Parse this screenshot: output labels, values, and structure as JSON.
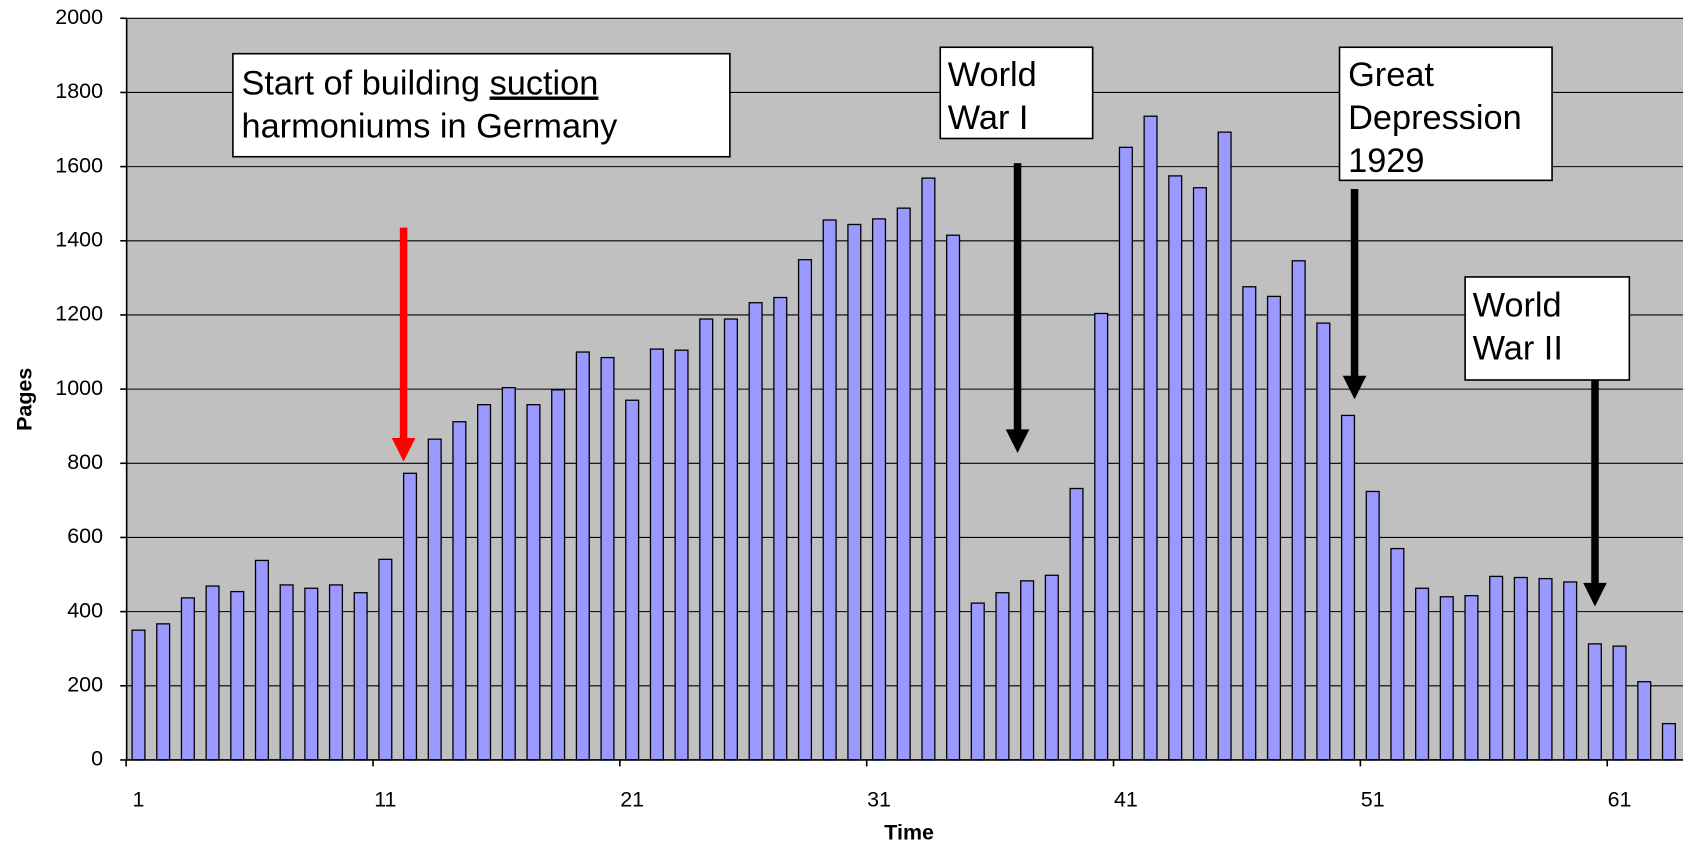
{
  "chart_data": {
    "type": "bar",
    "x_label": "Time",
    "y_label": "Pages",
    "x": [
      1,
      2,
      3,
      4,
      5,
      6,
      7,
      8,
      9,
      10,
      11,
      12,
      13,
      14,
      15,
      16,
      17,
      18,
      19,
      20,
      21,
      22,
      23,
      24,
      25,
      26,
      27,
      28,
      29,
      30,
      31,
      32,
      33,
      34,
      35,
      36,
      37,
      38,
      39,
      40,
      41,
      42,
      43,
      44,
      45,
      46,
      47,
      48,
      49,
      50,
      51,
      52,
      53,
      54,
      55,
      56,
      57,
      58,
      59,
      60,
      61,
      62,
      63
    ],
    "values": [
      350,
      367,
      437,
      469,
      454,
      538,
      472,
      463,
      472,
      451,
      541,
      773,
      865,
      912,
      958,
      1004,
      958,
      998,
      1100,
      1085,
      970,
      1108,
      1105,
      1189,
      1189,
      1233,
      1247,
      1349,
      1456,
      1444,
      1459,
      1488,
      1569,
      1415,
      423,
      451,
      483,
      498,
      732,
      1204,
      1652,
      1736,
      1575,
      1543,
      1693,
      1276,
      1250,
      1346,
      1178,
      929,
      724,
      570,
      463,
      440,
      443,
      495,
      492,
      489,
      480,
      313,
      307,
      211,
      98
    ],
    "color": "#9999ff",
    "background": "#c0c0c0",
    "grid": true,
    "xlim": [
      0.52,
      63.57
    ],
    "xticks": [
      1,
      11,
      21,
      31,
      41,
      51,
      61
    ],
    "ylim": [
      0,
      2000
    ],
    "yticks": [
      0,
      200,
      400,
      600,
      800,
      1000,
      1200,
      1400,
      1600,
      1800,
      2000
    ],
    "annotations": [
      {
        "lines": [
          [
            "Start of building",
            "suction"
          ],
          [
            "harmoniums in Germany"
          ]
        ]
      },
      {
        "lines": [
          [
            "World"
          ],
          [
            "War I"
          ]
        ]
      },
      {
        "lines": [
          [
            "Great"
          ],
          [
            "Depression"
          ],
          [
            "1929"
          ]
        ]
      },
      {
        "lines": [
          [
            "World"
          ],
          [
            "War II"
          ]
        ]
      }
    ]
  }
}
